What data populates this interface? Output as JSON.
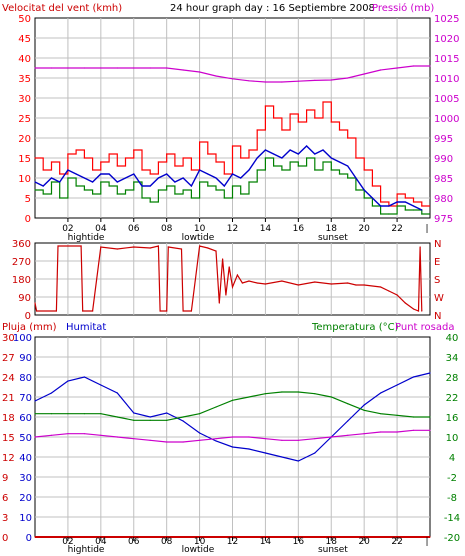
{
  "header": {
    "wind_title": "Velocitat del vent (kmh)",
    "main_title": "24 hour graph day : 16 Septiembre 2008",
    "pressure_title": "Pressió (mb)"
  },
  "lower_header": {
    "rain_label": "Pluja (mm)",
    "humidity_label": "Humitat",
    "temp_label": "Temperatura (°C)",
    "dew_label": "Punt rosada"
  },
  "colors": {
    "wind_avg": "#008000",
    "wind_gust": "#ff0000",
    "wind_mean_line": "#0000cc",
    "pressure": "#cc00cc",
    "direction": "#cc0000",
    "humidity": "#0000cc",
    "temperature": "#008000",
    "dewpoint": "#cc00cc",
    "rain": "#cc0000",
    "grid": "#c0c0c0",
    "frame": "#000000"
  },
  "x_axis": {
    "ticks": [
      "02",
      "04",
      "06",
      "08",
      "10",
      "12",
      "14",
      "16",
      "18",
      "20",
      "22"
    ],
    "tick_hours": [
      2,
      4,
      6,
      8,
      10,
      12,
      14,
      16,
      18,
      20,
      22
    ],
    "markers": [
      {
        "label": "hightide",
        "hour": 3.1
      },
      {
        "label": "lowtide",
        "hour": 9.9
      },
      {
        "label": "sunset",
        "hour": 18.1
      }
    ],
    "end_marker": "|",
    "range_hours": [
      0,
      24
    ]
  },
  "chart_data": [
    {
      "type": "line",
      "panel": "wind",
      "title": "24 hour graph day : 16 Septiembre 2008",
      "xlim": [
        0,
        24
      ],
      "left_axis": {
        "label": "Velocitat del vent (kmh)",
        "ylim": [
          0,
          50
        ],
        "ticks": [
          "0",
          "5",
          "10",
          "15",
          "20",
          "25",
          "30",
          "35",
          "40",
          "45",
          "50"
        ]
      },
      "right_axis": {
        "label": "Pressió (mb)",
        "ylim": [
          975,
          1025
        ],
        "ticks": [
          "975",
          "980",
          "985",
          "990",
          "995",
          "1000",
          "1005",
          "1010",
          "1015",
          "1020",
          "1025"
        ]
      },
      "series": [
        {
          "name": "gust",
          "axis": "left",
          "x": [
            0,
            0.5,
            1,
            1.5,
            2,
            2.5,
            3,
            3.5,
            4,
            4.5,
            5,
            5.5,
            6,
            6.5,
            7,
            7.5,
            8,
            8.5,
            9,
            9.5,
            10,
            10.5,
            11,
            11.5,
            12,
            12.5,
            13,
            13.5,
            14,
            14.5,
            15,
            15.5,
            16,
            16.5,
            17,
            17.5,
            18,
            18.5,
            19,
            19.5,
            20,
            20.5,
            21,
            21.5,
            22,
            22.5,
            23,
            23.5
          ],
          "y": [
            15,
            12,
            14,
            11,
            16,
            17,
            15,
            12,
            14,
            16,
            13,
            15,
            17,
            12,
            11,
            14,
            16,
            13,
            15,
            12,
            19,
            16,
            14,
            11,
            18,
            15,
            17,
            22,
            28,
            25,
            22,
            26,
            24,
            27,
            25,
            29,
            24,
            22,
            20,
            15,
            12,
            8,
            4,
            3,
            6,
            5,
            4,
            3
          ]
        },
        {
          "name": "average",
          "axis": "left",
          "x": [
            0,
            0.5,
            1,
            1.5,
            2,
            2.5,
            3,
            3.5,
            4,
            4.5,
            5,
            5.5,
            6,
            6.5,
            7,
            7.5,
            8,
            8.5,
            9,
            9.5,
            10,
            10.5,
            11,
            11.5,
            12,
            12.5,
            13,
            13.5,
            14,
            14.5,
            15,
            15.5,
            16,
            16.5,
            17,
            17.5,
            18,
            18.5,
            19,
            19.5,
            20,
            20.5,
            21,
            21.5,
            22,
            22.5,
            23,
            23.5
          ],
          "y": [
            7,
            6,
            9,
            5,
            10,
            8,
            7,
            6,
            9,
            8,
            6,
            7,
            9,
            5,
            4,
            7,
            8,
            6,
            7,
            5,
            9,
            8,
            7,
            5,
            8,
            6,
            9,
            12,
            15,
            13,
            12,
            14,
            13,
            15,
            12,
            14,
            12,
            11,
            10,
            7,
            5,
            3,
            1,
            1,
            3,
            2,
            2,
            1
          ]
        },
        {
          "name": "mean",
          "axis": "left",
          "x": [
            0,
            0.5,
            1,
            1.5,
            2,
            2.5,
            3,
            3.5,
            4,
            4.5,
            5,
            5.5,
            6,
            6.5,
            7,
            7.5,
            8,
            8.5,
            9,
            9.5,
            10,
            10.5,
            11,
            11.5,
            12,
            12.5,
            13,
            13.5,
            14,
            14.5,
            15,
            15.5,
            16,
            16.5,
            17,
            17.5,
            18,
            18.5,
            19,
            19.5,
            20,
            20.5,
            21,
            21.5,
            22,
            22.5,
            23,
            23.5
          ],
          "y": [
            9,
            8,
            10,
            9,
            12,
            11,
            10,
            9,
            11,
            11,
            9,
            10,
            11,
            8,
            8,
            10,
            11,
            9,
            10,
            8,
            12,
            11,
            10,
            8,
            11,
            10,
            12,
            15,
            17,
            16,
            15,
            17,
            16,
            18,
            16,
            17,
            15,
            14,
            13,
            10,
            7,
            5,
            3,
            3,
            4,
            4,
            3,
            2
          ]
        },
        {
          "name": "pressure",
          "axis": "right",
          "x": [
            0,
            1,
            2,
            3,
            4,
            5,
            6,
            7,
            8,
            9,
            10,
            11,
            12,
            13,
            14,
            15,
            16,
            17,
            18,
            19,
            20,
            21,
            22,
            23,
            24
          ],
          "y": [
            1012.5,
            1012.5,
            1012.5,
            1012.5,
            1012.5,
            1012.5,
            1012.5,
            1012.5,
            1012.5,
            1012,
            1011.5,
            1010.5,
            1009.8,
            1009.3,
            1009,
            1009,
            1009.2,
            1009.4,
            1009.5,
            1010,
            1011,
            1012,
            1012.5,
            1013,
            1013
          ]
        }
      ]
    },
    {
      "type": "line",
      "panel": "direction",
      "xlim": [
        0,
        24
      ],
      "left_axis": {
        "ylim": [
          0,
          360
        ],
        "ticks": [
          "0",
          "90",
          "180",
          "270",
          "360"
        ]
      },
      "right_axis": {
        "ticks": [
          "N",
          "W",
          "S",
          "E",
          "N"
        ]
      },
      "series": [
        {
          "name": "direction",
          "x": [
            0,
            0.1,
            1.3,
            1.4,
            2.8,
            2.9,
            3.5,
            4,
            5,
            6,
            7,
            7.5,
            7.6,
            8,
            8.1,
            8.9,
            9,
            9.5,
            10,
            10.5,
            11,
            11.2,
            11.4,
            11.6,
            11.8,
            12,
            12.3,
            12.6,
            13,
            13.5,
            14,
            15,
            16,
            17,
            18,
            19,
            19.5,
            20,
            21,
            21.5,
            22,
            22.5,
            23,
            23.3,
            23.4,
            23.5
          ],
          "y": [
            60,
            20,
            20,
            345,
            345,
            20,
            20,
            340,
            330,
            340,
            335,
            345,
            20,
            20,
            340,
            330,
            20,
            20,
            345,
            335,
            320,
            60,
            280,
            100,
            240,
            140,
            200,
            160,
            170,
            160,
            155,
            170,
            150,
            165,
            155,
            160,
            150,
            150,
            140,
            120,
            100,
            60,
            30,
            20,
            340,
            20
          ]
        }
      ]
    },
    {
      "type": "line",
      "panel": "temperature_humidity",
      "xlim": [
        0,
        24
      ],
      "left_axis": {
        "label": "Humitat",
        "ylim": [
          0,
          100
        ],
        "ticks": [
          "0",
          "10",
          "20",
          "30",
          "40",
          "50",
          "60",
          "70",
          "80",
          "90",
          "100"
        ]
      },
      "left_axis_rain": {
        "label": "Pluja (mm)",
        "ylim": [
          0,
          30
        ],
        "ticks": [
          "0",
          "3",
          "6",
          "9",
          "12",
          "15",
          "18",
          "21",
          "24",
          "27",
          "30"
        ]
      },
      "right_axis": {
        "label": "Temperatura (°C)",
        "ylim": [
          -20,
          40
        ],
        "ticks": [
          "-20",
          "-14",
          "-8",
          "-2",
          "4",
          "10",
          "16",
          "22",
          "28",
          "34",
          "40"
        ]
      },
      "series": [
        {
          "name": "humidity",
          "axis": "left",
          "x": [
            0,
            1,
            2,
            3,
            4,
            5,
            6,
            7,
            8,
            9,
            10,
            11,
            12,
            13,
            14,
            15,
            16,
            17,
            18,
            19,
            20,
            21,
            22,
            23,
            24
          ],
          "y": [
            68,
            72,
            78,
            80,
            76,
            72,
            62,
            60,
            62,
            58,
            52,
            48,
            45,
            44,
            42,
            40,
            38,
            42,
            50,
            58,
            66,
            72,
            76,
            80,
            82
          ]
        },
        {
          "name": "temperature",
          "axis": "right",
          "x": [
            0,
            1,
            2,
            3,
            4,
            5,
            6,
            7,
            8,
            9,
            10,
            11,
            12,
            13,
            14,
            15,
            16,
            17,
            18,
            19,
            20,
            21,
            22,
            23,
            24
          ],
          "y": [
            17,
            17,
            17,
            17,
            17,
            16,
            15,
            15,
            15,
            16,
            17,
            19,
            21,
            22,
            23,
            23.5,
            23.5,
            23,
            22,
            20,
            18,
            17,
            16.5,
            16,
            16
          ]
        },
        {
          "name": "dewpoint",
          "axis": "right",
          "x": [
            0,
            1,
            2,
            3,
            4,
            5,
            6,
            7,
            8,
            9,
            10,
            11,
            12,
            13,
            14,
            15,
            16,
            17,
            18,
            19,
            20,
            21,
            22,
            23,
            24
          ],
          "y": [
            10,
            10.5,
            11,
            11,
            10.5,
            10,
            9.5,
            9,
            8.5,
            8.5,
            9,
            9.5,
            10,
            10,
            9.5,
            9,
            9,
            9.5,
            10,
            10.5,
            11,
            11.5,
            11.5,
            12,
            12
          ]
        },
        {
          "name": "rain",
          "axis": "rain",
          "x": [
            0,
            24
          ],
          "y": [
            0,
            0
          ]
        }
      ]
    }
  ]
}
